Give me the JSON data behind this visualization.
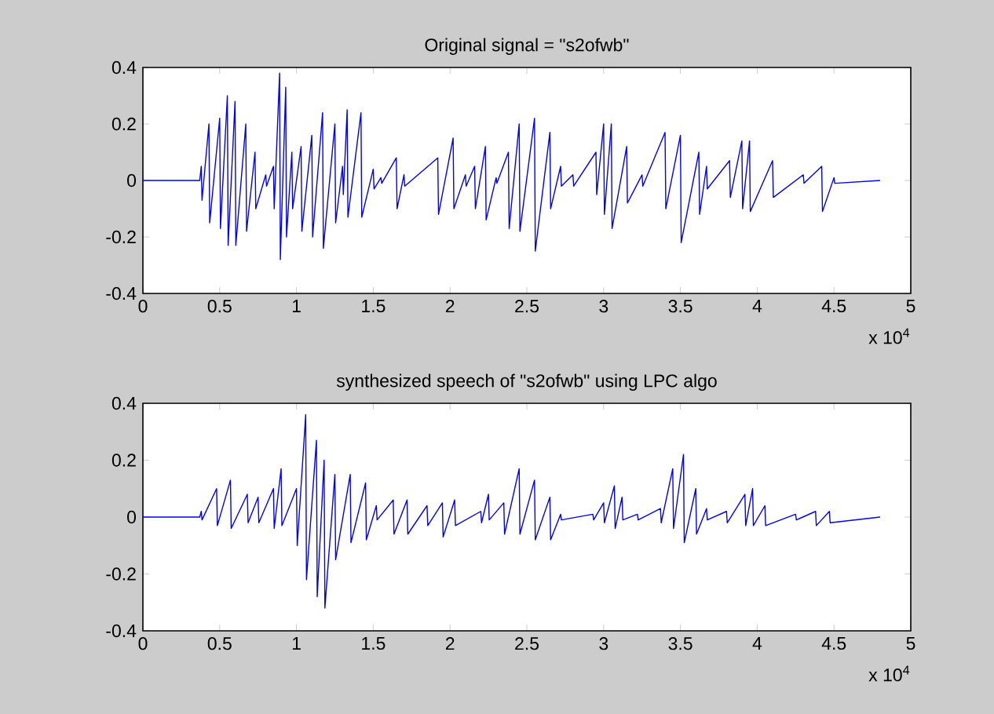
{
  "chart_data": [
    {
      "type": "line",
      "title": "Original signal = \"s2ofwb\"",
      "color": "#0000ff",
      "annotations": [
        "x 10$^{4}$"
      ],
      "xlim": [
        0,
        5
      ],
      "xticks": [
        0,
        0.5,
        1,
        1.5,
        2,
        2.5,
        3,
        3.5,
        4,
        4.5,
        5
      ],
      "ylim": [
        -0.4,
        0.4
      ],
      "yticks": [
        -0.4,
        -0.2,
        0,
        0.2,
        0.4
      ],
      "x": [
        0,
        0.37,
        0.38,
        0.385,
        0.43,
        0.435,
        0.5,
        0.505,
        0.55,
        0.555,
        0.6,
        0.605,
        0.67,
        0.675,
        0.73,
        0.735,
        0.8,
        0.805,
        0.85,
        0.855,
        0.89,
        0.895,
        0.93,
        0.935,
        0.97,
        0.975,
        1.03,
        1.035,
        1.1,
        1.105,
        1.17,
        1.175,
        1.25,
        1.255,
        1.3,
        1.305,
        1.33,
        1.335,
        1.42,
        1.425,
        1.5,
        1.505,
        1.55,
        1.555,
        1.65,
        1.655,
        1.7,
        1.705,
        1.92,
        1.925,
        2.02,
        2.025,
        2.1,
        2.105,
        2.16,
        2.165,
        2.23,
        2.235,
        2.3,
        2.305,
        2.38,
        2.385,
        2.45,
        2.455,
        2.55,
        2.555,
        2.65,
        2.655,
        2.72,
        2.725,
        2.8,
        2.805,
        2.95,
        2.955,
        3,
        3.005,
        3.05,
        3.055,
        3.15,
        3.155,
        3.25,
        3.255,
        3.4,
        3.405,
        3.5,
        3.505,
        3.62,
        3.625,
        3.67,
        3.675,
        3.82,
        3.825,
        3.9,
        3.905,
        3.95,
        3.955,
        4.1,
        4.105,
        4.3,
        4.305,
        4.42,
        4.425,
        4.5,
        4.505,
        4.8
      ],
      "values": [
        0,
        0,
        0.05,
        -0.07,
        0.2,
        -0.15,
        0.22,
        -0.17,
        0.3,
        -0.23,
        0.28,
        -0.23,
        0.2,
        -0.18,
        0.1,
        -0.1,
        0.02,
        -0.02,
        0.05,
        -0.1,
        0.38,
        -0.28,
        0.33,
        -0.2,
        0.1,
        -0.1,
        0.12,
        -0.18,
        0.16,
        -0.2,
        0.24,
        -0.24,
        0.2,
        -0.15,
        0.05,
        -0.05,
        0.25,
        -0.13,
        0.24,
        -0.13,
        0.04,
        -0.03,
        0.01,
        -0.01,
        0.08,
        -0.1,
        0.02,
        -0.02,
        0.08,
        -0.12,
        0.15,
        -0.1,
        0.02,
        -0.02,
        0.05,
        -0.1,
        0.12,
        -0.14,
        0.01,
        -0.01,
        0.1,
        -0.17,
        0.2,
        -0.18,
        0.22,
        -0.25,
        0.17,
        -0.1,
        0.05,
        -0.02,
        0.02,
        -0.02,
        0.1,
        -0.05,
        0.2,
        -0.12,
        0.2,
        -0.17,
        0.12,
        -0.08,
        0.02,
        -0.02,
        0.17,
        -0.1,
        0.16,
        -0.22,
        0.1,
        -0.12,
        0.05,
        -0.03,
        0.07,
        -0.06,
        0.14,
        -0.1,
        0.14,
        -0.11,
        0.07,
        -0.06,
        0.02,
        -0.01,
        0.05,
        -0.11,
        0.01,
        -0.01,
        0
      ]
    },
    {
      "type": "line",
      "title": "synthesized speech of \"s2ofwb\" using LPC algo",
      "color": "#0000ff",
      "annotations": [
        "x 10$^{4}$"
      ],
      "xlim": [
        0,
        5
      ],
      "xticks": [
        0,
        0.5,
        1,
        1.5,
        2,
        2.5,
        3,
        3.5,
        4,
        4.5,
        5
      ],
      "ylim": [
        -0.4,
        0.4
      ],
      "yticks": [
        -0.4,
        -0.2,
        0,
        0.2,
        0.4
      ],
      "x": [
        0,
        0.37,
        0.38,
        0.385,
        0.48,
        0.485,
        0.57,
        0.575,
        0.68,
        0.685,
        0.75,
        0.755,
        0.85,
        0.855,
        0.9,
        0.905,
        1,
        1.005,
        1.06,
        1.065,
        1.13,
        1.135,
        1.18,
        1.185,
        1.25,
        1.255,
        1.35,
        1.355,
        1.45,
        1.455,
        1.52,
        1.525,
        1.63,
        1.635,
        1.72,
        1.725,
        1.85,
        1.855,
        1.95,
        1.955,
        2.03,
        2.035,
        2.2,
        2.205,
        2.25,
        2.255,
        2.35,
        2.355,
        2.45,
        2.455,
        2.55,
        2.555,
        2.65,
        2.655,
        2.72,
        2.725,
        2.93,
        2.935,
        3,
        3.005,
        3.07,
        3.075,
        3.12,
        3.125,
        3.22,
        3.225,
        3.37,
        3.375,
        3.45,
        3.455,
        3.52,
        3.525,
        3.6,
        3.605,
        3.67,
        3.675,
        3.8,
        3.805,
        3.92,
        3.925,
        3.97,
        3.975,
        4.05,
        4.055,
        4.25,
        4.255,
        4.38,
        4.385,
        4.47,
        4.475,
        4.8
      ],
      "values": [
        0,
        0,
        0.02,
        -0.01,
        0.1,
        -0.03,
        0.13,
        -0.04,
        0.08,
        -0.02,
        0.07,
        -0.02,
        0.1,
        -0.04,
        0.17,
        -0.03,
        0.1,
        -0.1,
        0.36,
        -0.22,
        0.27,
        -0.28,
        0.2,
        -0.32,
        0.15,
        -0.15,
        0.15,
        -0.09,
        0.12,
        -0.08,
        0.04,
        -0.01,
        0.06,
        -0.06,
        0.06,
        -0.06,
        0.04,
        -0.03,
        0.05,
        -0.07,
        0.06,
        -0.03,
        0.02,
        -0.02,
        0.08,
        -0.01,
        0.05,
        -0.06,
        0.17,
        -0.06,
        0.13,
        -0.08,
        0.07,
        -0.08,
        0.01,
        -0.01,
        0.01,
        -0.01,
        0.05,
        -0.02,
        0.11,
        -0.04,
        0.07,
        -0.01,
        0.01,
        -0.01,
        0.03,
        -0.02,
        0.17,
        -0.04,
        0.22,
        -0.09,
        0.1,
        -0.06,
        0.03,
        -0.01,
        0.02,
        -0.02,
        0.08,
        -0.03,
        0.1,
        -0.03,
        0.04,
        -0.03,
        0.01,
        -0.01,
        0.02,
        -0.03,
        0.02,
        -0.02,
        0
      ]
    }
  ]
}
